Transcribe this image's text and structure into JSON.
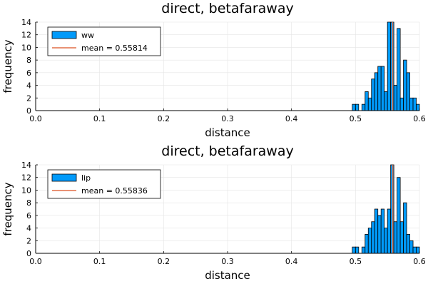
{
  "colors": {
    "bar": "#009AFA",
    "bar_edge": "#000000",
    "mean_line": "#E26F46",
    "grid": "#e5e5e5"
  },
  "chart_data": [
    {
      "type": "bar",
      "title": "direct, betafaraway",
      "xlabel": "distance",
      "ylabel": "frequency",
      "xlim": [
        0.0,
        0.6
      ],
      "ylim": [
        0,
        14
      ],
      "xticks": [
        "0.0",
        "0.1",
        "0.2",
        "0.3",
        "0.4",
        "0.5",
        "0.6"
      ],
      "yticks": [
        "0",
        "2",
        "4",
        "6",
        "8",
        "10",
        "12",
        "14"
      ],
      "grid": true,
      "legend_position": "top-left",
      "bin_width": 0.005,
      "bins_start": [
        0.495,
        0.5,
        0.505,
        0.51,
        0.515,
        0.52,
        0.525,
        0.53,
        0.535,
        0.54,
        0.545,
        0.55,
        0.555,
        0.56,
        0.565,
        0.57,
        0.575,
        0.58,
        0.585,
        0.59,
        0.595
      ],
      "counts": [
        1,
        1,
        0,
        1,
        3,
        2,
        5,
        6,
        7,
        7,
        3,
        14,
        14,
        4,
        13,
        2,
        8,
        6,
        2,
        2,
        1
      ],
      "series": [
        {
          "name": "ww"
        }
      ],
      "mean": {
        "label": "mean = 0.55814",
        "value": 0.55814
      }
    },
    {
      "type": "bar",
      "title": "direct, betafaraway",
      "xlabel": "distance",
      "ylabel": "frequency",
      "xlim": [
        0.0,
        0.6
      ],
      "ylim": [
        0,
        14
      ],
      "xticks": [
        "0.0",
        "0.1",
        "0.2",
        "0.3",
        "0.4",
        "0.5",
        "0.6"
      ],
      "yticks": [
        "0",
        "2",
        "4",
        "6",
        "8",
        "10",
        "12",
        "14"
      ],
      "grid": true,
      "legend_position": "top-left",
      "bin_width": 0.005,
      "bins_start": [
        0.495,
        0.5,
        0.505,
        0.51,
        0.515,
        0.52,
        0.525,
        0.53,
        0.535,
        0.54,
        0.545,
        0.55,
        0.555,
        0.56,
        0.565,
        0.57,
        0.575,
        0.58,
        0.585,
        0.59,
        0.595
      ],
      "counts": [
        1,
        1,
        0,
        1,
        3,
        4,
        5,
        7,
        6,
        7,
        4,
        7,
        14,
        5,
        12,
        5,
        8,
        3,
        2,
        1,
        1
      ],
      "series": [
        {
          "name": "lip"
        }
      ],
      "mean": {
        "label": "mean = 0.55836",
        "value": 0.55836
      }
    }
  ]
}
